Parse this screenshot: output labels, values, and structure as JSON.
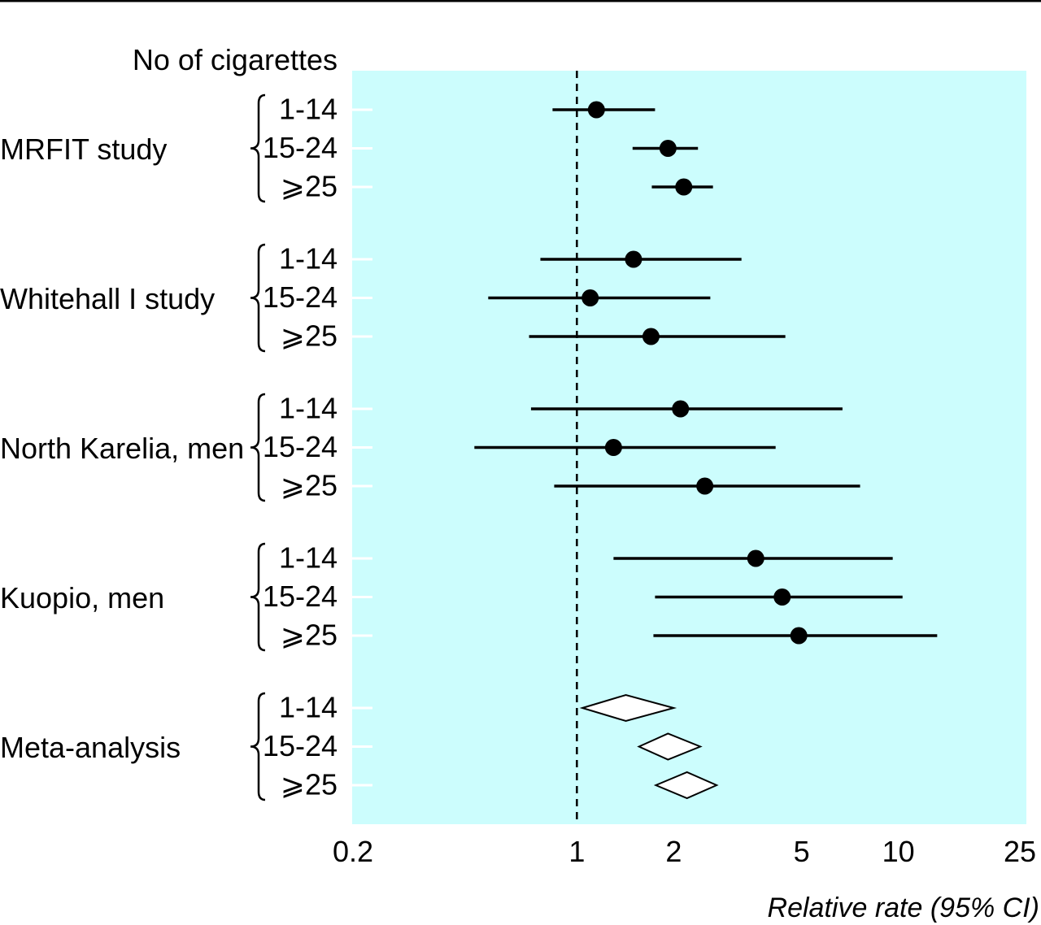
{
  "chart_data": {
    "type": "forest",
    "header": "No of cigarettes",
    "xlabel": "Relative rate (95% CI)",
    "x_scale": "log",
    "xlim": [
      0.2,
      25
    ],
    "x_ticks": [
      {
        "value": 0.2,
        "label": "0.2"
      },
      {
        "value": 1,
        "label": "1"
      },
      {
        "value": 2,
        "label": "2"
      },
      {
        "value": 5,
        "label": "5"
      },
      {
        "value": 10,
        "label": "10"
      },
      {
        "value": 25,
        "label": "25"
      }
    ],
    "reference_line": 1,
    "colors": {
      "panel": "#ccfdfd",
      "marker": "#000000",
      "diamond_fill": "#ffffff"
    },
    "groups": [
      {
        "name": "MRFIT study",
        "rows": [
          {
            "label": "1-14",
            "estimate": 1.15,
            "low": 0.84,
            "high": 1.75,
            "marker": "circle"
          },
          {
            "label": "15-24",
            "estimate": 1.92,
            "low": 1.49,
            "high": 2.38,
            "marker": "circle"
          },
          {
            "label": "⩾25",
            "estimate": 2.15,
            "low": 1.71,
            "high": 2.65,
            "marker": "circle"
          }
        ]
      },
      {
        "name": "Whitehall I study",
        "rows": [
          {
            "label": "1-14",
            "estimate": 1.5,
            "low": 0.77,
            "high": 3.25,
            "marker": "circle"
          },
          {
            "label": "15-24",
            "estimate": 1.1,
            "low": 0.53,
            "high": 2.6,
            "marker": "circle"
          },
          {
            "label": "⩾25",
            "estimate": 1.7,
            "low": 0.71,
            "high": 4.45,
            "marker": "circle"
          }
        ]
      },
      {
        "name": "North Karelia, men",
        "rows": [
          {
            "label": "1-14",
            "estimate": 2.1,
            "low": 0.72,
            "high": 6.7,
            "marker": "circle"
          },
          {
            "label": "15-24",
            "estimate": 1.3,
            "low": 0.48,
            "high": 4.15,
            "marker": "circle"
          },
          {
            "label": "⩾25",
            "estimate": 2.5,
            "low": 0.85,
            "high": 7.6,
            "marker": "circle"
          }
        ]
      },
      {
        "name": "Kuopio, men",
        "rows": [
          {
            "label": "1-14",
            "estimate": 3.6,
            "low": 1.3,
            "high": 9.6,
            "marker": "circle"
          },
          {
            "label": "15-24",
            "estimate": 4.35,
            "low": 1.75,
            "high": 10.3,
            "marker": "circle"
          },
          {
            "label": "⩾25",
            "estimate": 4.9,
            "low": 1.73,
            "high": 13.2,
            "marker": "circle"
          }
        ]
      },
      {
        "name": "Meta-analysis",
        "rows": [
          {
            "label": "1-14",
            "estimate": 1.42,
            "low": 1.04,
            "high": 2.0,
            "marker": "diamond"
          },
          {
            "label": "15-24",
            "estimate": 1.92,
            "low": 1.56,
            "high": 2.42,
            "marker": "diamond"
          },
          {
            "label": "⩾25",
            "estimate": 2.2,
            "low": 1.76,
            "high": 2.72,
            "marker": "diamond"
          }
        ]
      }
    ]
  }
}
